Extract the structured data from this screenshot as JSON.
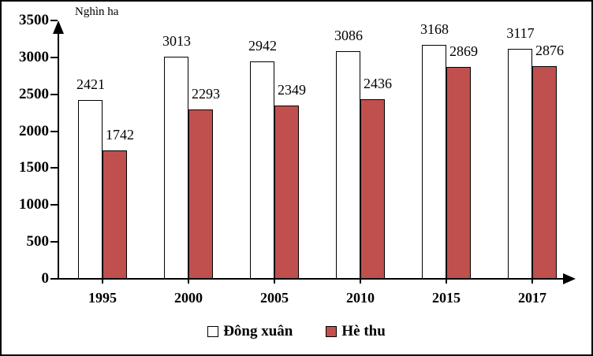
{
  "chart_data": {
    "type": "bar",
    "title": "",
    "unit_label": "Nghìn ha",
    "categories": [
      "1995",
      "2000",
      "2005",
      "2010",
      "2015",
      "2017"
    ],
    "series": [
      {
        "name": "Đông xuân",
        "color": "#FFFFFF",
        "values": [
          2421,
          3013,
          2942,
          3086,
          3168,
          3117
        ]
      },
      {
        "name": "Hè thu",
        "color": "#C0504D",
        "values": [
          1742,
          2293,
          2349,
          2436,
          2869,
          2876
        ]
      }
    ],
    "ylim": [
      0,
      3500
    ],
    "yticks": [
      0,
      500,
      1000,
      1500,
      2000,
      2500,
      3000,
      3500
    ],
    "grid": false,
    "legend_position": "bottom",
    "bar_border_color": "#000000",
    "axis_color": "#000000"
  }
}
